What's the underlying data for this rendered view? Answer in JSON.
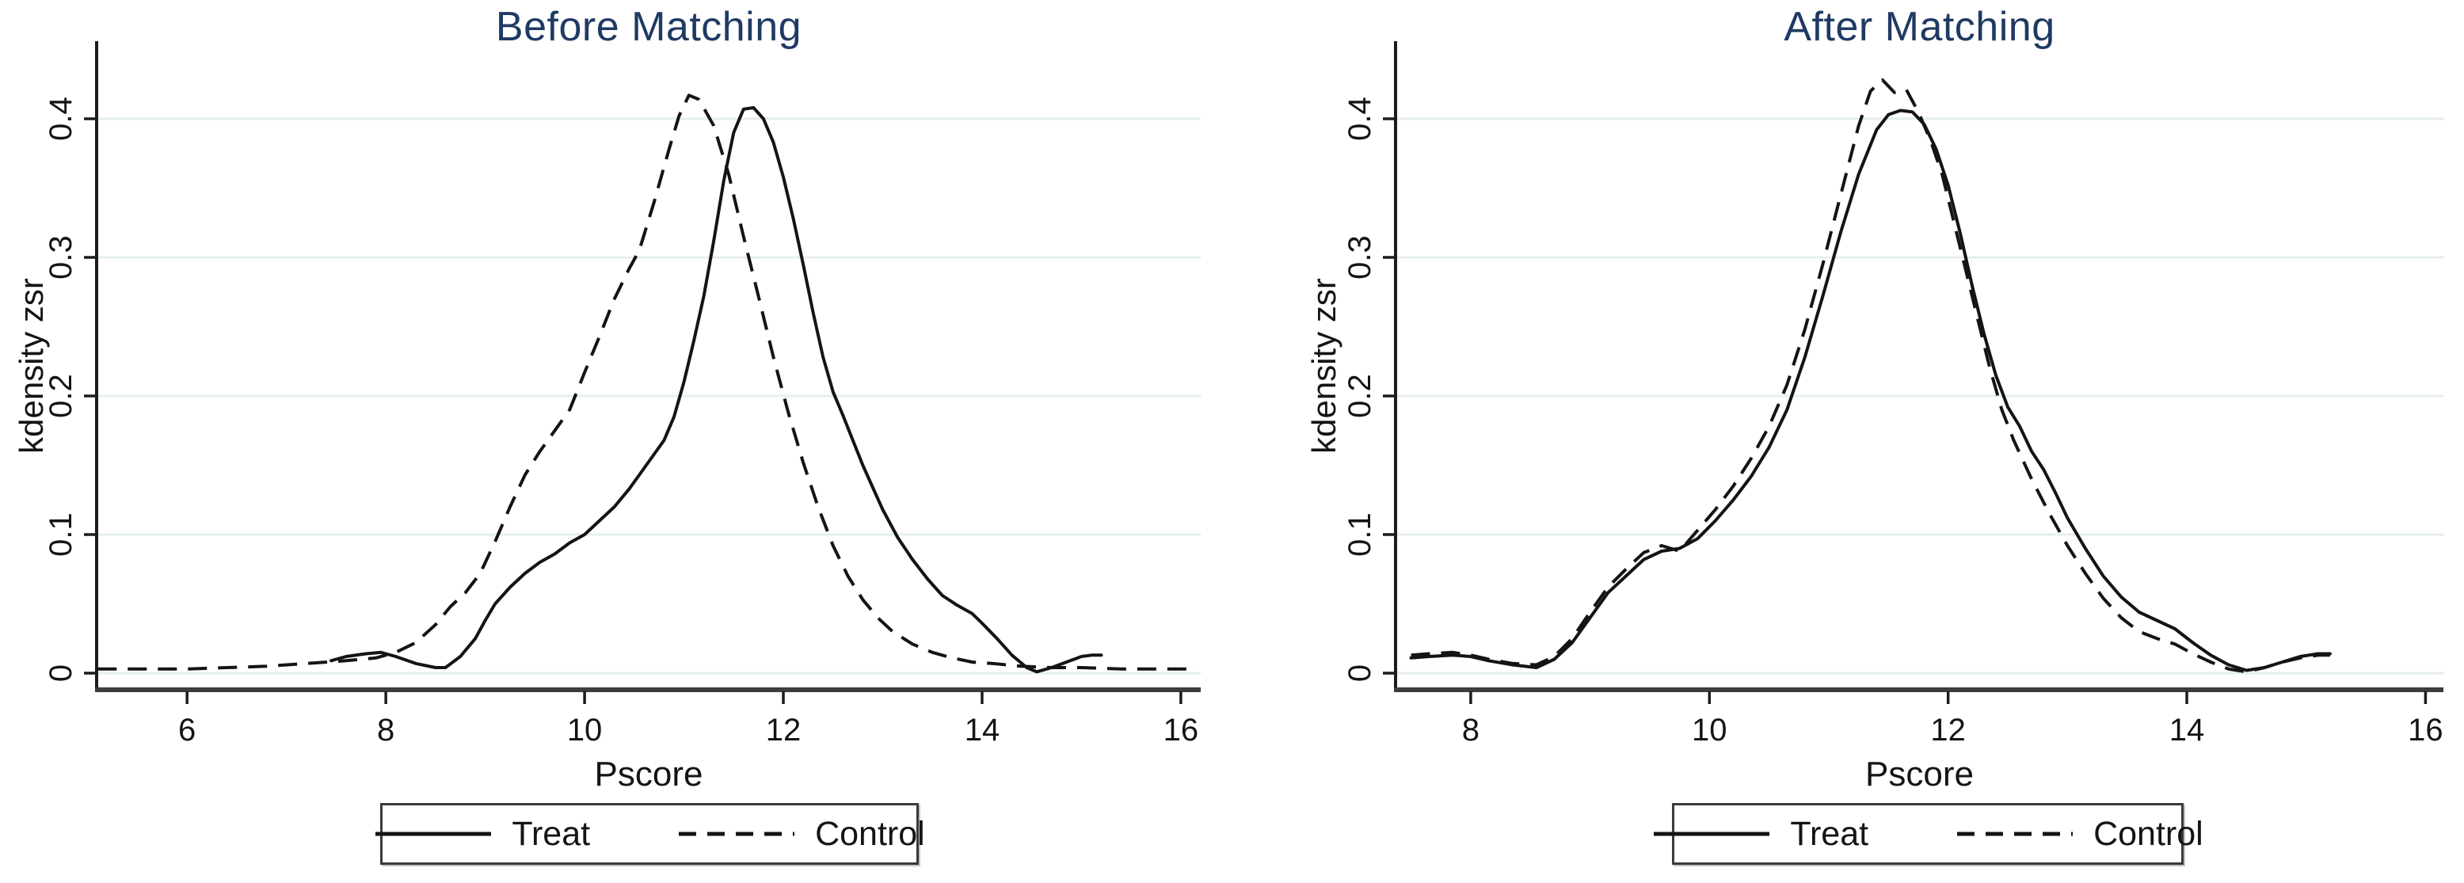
{
  "figure": {
    "background": "#ffffff",
    "description": "Two Stata-style kernel density plots comparing Treat and Control propensity score distributions before and after matching"
  },
  "colors": {
    "title": "#1F3A63",
    "text": "#141414",
    "grid": "#e5eef1",
    "curve": "#141414",
    "x_axis": "#3d3d3d",
    "y_axis": "#1c1c1c",
    "legend_border": "#3a3a3a"
  },
  "legend": {
    "treat_label": "Treat",
    "control_label": "Control"
  },
  "chart_data": [
    {
      "type": "line",
      "title": "Before Matching",
      "xlabel": "Pscore",
      "ylabel": "kdensity zsr",
      "xlim": [
        5.09,
        16.2
      ],
      "ylim": [
        0,
        0.455
      ],
      "xticks": [
        6,
        8,
        10,
        12,
        14,
        16
      ],
      "yticks": [
        0,
        0.1,
        0.2,
        0.3,
        0.4
      ],
      "grid": "horizontal",
      "legend_position": "bottom-center",
      "series": [
        {
          "name": "Treat",
          "style": "solid",
          "points": [
            [
              7.45,
              0.009
            ],
            [
              7.6,
              0.012
            ],
            [
              7.8,
              0.014
            ],
            [
              7.95,
              0.015
            ],
            [
              8.1,
              0.012
            ],
            [
              8.3,
              0.007
            ],
            [
              8.5,
              0.004
            ],
            [
              8.6,
              0.004
            ],
            [
              8.75,
              0.012
            ],
            [
              8.9,
              0.025
            ],
            [
              9.0,
              0.038
            ],
            [
              9.1,
              0.05
            ],
            [
              9.25,
              0.062
            ],
            [
              9.4,
              0.072
            ],
            [
              9.55,
              0.08
            ],
            [
              9.7,
              0.086
            ],
            [
              9.85,
              0.094
            ],
            [
              10.0,
              0.1
            ],
            [
              10.15,
              0.11
            ],
            [
              10.3,
              0.12
            ],
            [
              10.45,
              0.133
            ],
            [
              10.6,
              0.148
            ],
            [
              10.7,
              0.158
            ],
            [
              10.8,
              0.168
            ],
            [
              10.9,
              0.185
            ],
            [
              11.0,
              0.21
            ],
            [
              11.1,
              0.24
            ],
            [
              11.2,
              0.272
            ],
            [
              11.3,
              0.312
            ],
            [
              11.4,
              0.355
            ],
            [
              11.5,
              0.39
            ],
            [
              11.6,
              0.407
            ],
            [
              11.7,
              0.408
            ],
            [
              11.8,
              0.4
            ],
            [
              11.9,
              0.383
            ],
            [
              12.0,
              0.358
            ],
            [
              12.1,
              0.328
            ],
            [
              12.2,
              0.295
            ],
            [
              12.3,
              0.26
            ],
            [
              12.4,
              0.228
            ],
            [
              12.5,
              0.203
            ],
            [
              12.6,
              0.186
            ],
            [
              12.7,
              0.168
            ],
            [
              12.8,
              0.15
            ],
            [
              12.9,
              0.134
            ],
            [
              13.0,
              0.118
            ],
            [
              13.15,
              0.098
            ],
            [
              13.3,
              0.082
            ],
            [
              13.45,
              0.068
            ],
            [
              13.6,
              0.056
            ],
            [
              13.75,
              0.049
            ],
            [
              13.9,
              0.043
            ],
            [
              14.0,
              0.036
            ],
            [
              14.15,
              0.025
            ],
            [
              14.3,
              0.013
            ],
            [
              14.45,
              0.004
            ],
            [
              14.55,
              0.001
            ],
            [
              14.7,
              0.004
            ],
            [
              14.85,
              0.008
            ],
            [
              15.0,
              0.012
            ],
            [
              15.1,
              0.013
            ],
            [
              15.2,
              0.013
            ]
          ]
        },
        {
          "name": "Control",
          "style": "dashed",
          "points": [
            [
              5.1,
              0.003
            ],
            [
              5.5,
              0.003
            ],
            [
              6.0,
              0.003
            ],
            [
              6.4,
              0.004
            ],
            [
              6.8,
              0.005
            ],
            [
              7.2,
              0.007
            ],
            [
              7.6,
              0.009
            ],
            [
              7.9,
              0.011
            ],
            [
              8.1,
              0.015
            ],
            [
              8.3,
              0.022
            ],
            [
              8.5,
              0.035
            ],
            [
              8.65,
              0.048
            ],
            [
              8.8,
              0.058
            ],
            [
              8.95,
              0.072
            ],
            [
              9.1,
              0.095
            ],
            [
              9.25,
              0.12
            ],
            [
              9.4,
              0.143
            ],
            [
              9.55,
              0.16
            ],
            [
              9.7,
              0.175
            ],
            [
              9.85,
              0.19
            ],
            [
              10.0,
              0.217
            ],
            [
              10.15,
              0.243
            ],
            [
              10.3,
              0.27
            ],
            [
              10.45,
              0.292
            ],
            [
              10.55,
              0.305
            ],
            [
              10.7,
              0.34
            ],
            [
              10.85,
              0.378
            ],
            [
              10.95,
              0.402
            ],
            [
              11.05,
              0.417
            ],
            [
              11.15,
              0.414
            ],
            [
              11.3,
              0.395
            ],
            [
              11.45,
              0.36
            ],
            [
              11.6,
              0.315
            ],
            [
              11.75,
              0.272
            ],
            [
              11.9,
              0.228
            ],
            [
              12.05,
              0.188
            ],
            [
              12.2,
              0.152
            ],
            [
              12.35,
              0.12
            ],
            [
              12.5,
              0.092
            ],
            [
              12.65,
              0.07
            ],
            [
              12.8,
              0.053
            ],
            [
              12.95,
              0.04
            ],
            [
              13.1,
              0.03
            ],
            [
              13.3,
              0.021
            ],
            [
              13.5,
              0.015
            ],
            [
              13.7,
              0.011
            ],
            [
              13.9,
              0.008
            ],
            [
              14.1,
              0.007
            ],
            [
              14.4,
              0.005
            ],
            [
              14.7,
              0.004
            ],
            [
              15.0,
              0.004
            ],
            [
              15.4,
              0.003
            ],
            [
              15.8,
              0.003
            ],
            [
              16.15,
              0.003
            ]
          ]
        }
      ]
    },
    {
      "type": "line",
      "title": "After Matching",
      "xlabel": "Pscore",
      "ylabel": "kdensity zsr",
      "xlim": [
        7.37,
        16.15
      ],
      "ylim": [
        0,
        0.455
      ],
      "xticks": [
        8,
        10,
        12,
        14,
        16
      ],
      "yticks": [
        0,
        0.1,
        0.2,
        0.3,
        0.4
      ],
      "grid": "horizontal",
      "legend_position": "bottom-center",
      "series": [
        {
          "name": "Treat",
          "style": "solid",
          "points": [
            [
              7.5,
              0.011
            ],
            [
              7.65,
              0.012
            ],
            [
              7.85,
              0.013
            ],
            [
              8.0,
              0.012
            ],
            [
              8.15,
              0.009
            ],
            [
              8.35,
              0.006
            ],
            [
              8.55,
              0.004
            ],
            [
              8.7,
              0.01
            ],
            [
              8.85,
              0.022
            ],
            [
              9.0,
              0.04
            ],
            [
              9.15,
              0.058
            ],
            [
              9.3,
              0.07
            ],
            [
              9.45,
              0.082
            ],
            [
              9.6,
              0.088
            ],
            [
              9.75,
              0.09
            ],
            [
              9.9,
              0.097
            ],
            [
              10.05,
              0.11
            ],
            [
              10.2,
              0.125
            ],
            [
              10.35,
              0.142
            ],
            [
              10.5,
              0.163
            ],
            [
              10.65,
              0.19
            ],
            [
              10.8,
              0.228
            ],
            [
              10.95,
              0.272
            ],
            [
              11.1,
              0.318
            ],
            [
              11.25,
              0.36
            ],
            [
              11.4,
              0.392
            ],
            [
              11.5,
              0.403
            ],
            [
              11.6,
              0.406
            ],
            [
              11.7,
              0.405
            ],
            [
              11.8,
              0.396
            ],
            [
              11.9,
              0.378
            ],
            [
              12.0,
              0.352
            ],
            [
              12.1,
              0.318
            ],
            [
              12.2,
              0.28
            ],
            [
              12.3,
              0.245
            ],
            [
              12.4,
              0.215
            ],
            [
              12.5,
              0.192
            ],
            [
              12.6,
              0.178
            ],
            [
              12.7,
              0.16
            ],
            [
              12.8,
              0.147
            ],
            [
              12.9,
              0.13
            ],
            [
              13.0,
              0.112
            ],
            [
              13.15,
              0.09
            ],
            [
              13.3,
              0.07
            ],
            [
              13.45,
              0.055
            ],
            [
              13.6,
              0.044
            ],
            [
              13.75,
              0.038
            ],
            [
              13.9,
              0.032
            ],
            [
              14.05,
              0.022
            ],
            [
              14.2,
              0.013
            ],
            [
              14.35,
              0.006
            ],
            [
              14.5,
              0.002
            ],
            [
              14.65,
              0.004
            ],
            [
              14.8,
              0.008
            ],
            [
              14.95,
              0.012
            ],
            [
              15.1,
              0.014
            ],
            [
              15.2,
              0.014
            ]
          ]
        },
        {
          "name": "Control",
          "style": "dashed",
          "points": [
            [
              7.5,
              0.013
            ],
            [
              7.65,
              0.014
            ],
            [
              7.85,
              0.015
            ],
            [
              8.0,
              0.013
            ],
            [
              8.15,
              0.01
            ],
            [
              8.35,
              0.007
            ],
            [
              8.55,
              0.006
            ],
            [
              8.7,
              0.012
            ],
            [
              8.85,
              0.025
            ],
            [
              9.0,
              0.044
            ],
            [
              9.15,
              0.062
            ],
            [
              9.3,
              0.075
            ],
            [
              9.45,
              0.087
            ],
            [
              9.6,
              0.092
            ],
            [
              9.75,
              0.088
            ],
            [
              9.9,
              0.103
            ],
            [
              10.05,
              0.118
            ],
            [
              10.2,
              0.135
            ],
            [
              10.35,
              0.155
            ],
            [
              10.5,
              0.178
            ],
            [
              10.65,
              0.208
            ],
            [
              10.8,
              0.248
            ],
            [
              10.95,
              0.295
            ],
            [
              11.1,
              0.345
            ],
            [
              11.25,
              0.395
            ],
            [
              11.35,
              0.42
            ],
            [
              11.45,
              0.428
            ],
            [
              11.55,
              0.419
            ],
            [
              11.65,
              0.421
            ],
            [
              11.75,
              0.405
            ],
            [
              11.85,
              0.385
            ],
            [
              11.95,
              0.36
            ],
            [
              12.05,
              0.325
            ],
            [
              12.15,
              0.29
            ],
            [
              12.25,
              0.255
            ],
            [
              12.35,
              0.22
            ],
            [
              12.45,
              0.19
            ],
            [
              12.55,
              0.168
            ],
            [
              12.7,
              0.14
            ],
            [
              12.85,
              0.115
            ],
            [
              13.0,
              0.092
            ],
            [
              13.15,
              0.072
            ],
            [
              13.3,
              0.054
            ],
            [
              13.45,
              0.04
            ],
            [
              13.6,
              0.03
            ],
            [
              13.75,
              0.025
            ],
            [
              13.9,
              0.021
            ],
            [
              14.05,
              0.014
            ],
            [
              14.2,
              0.008
            ],
            [
              14.35,
              0.003
            ],
            [
              14.5,
              0.001
            ],
            [
              14.65,
              0.004
            ],
            [
              14.8,
              0.008
            ],
            [
              14.95,
              0.011
            ],
            [
              15.1,
              0.013
            ],
            [
              15.2,
              0.013
            ]
          ]
        }
      ]
    }
  ]
}
